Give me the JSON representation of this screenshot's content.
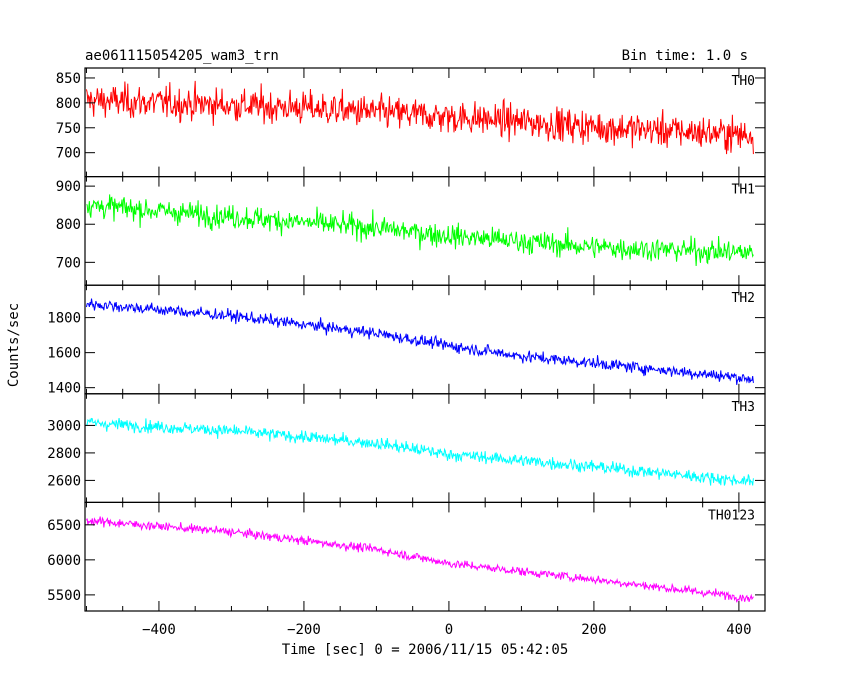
{
  "header": {
    "title": "ae061115054205_wam3_trn",
    "bin_time": "Bin time: 1.0 s"
  },
  "chart_data": {
    "type": "line",
    "xlabel": "Time [sec] 0 = 2006/11/15 05:42:05",
    "ylabel": "Counts/sec",
    "xlim": [
      -502,
      436
    ],
    "xticks": [
      -400,
      -200,
      0,
      200,
      400
    ],
    "panels": [
      {
        "name": "TH0",
        "color": "#ff0000",
        "ylim": [
          652,
          870
        ],
        "yticks": [
          700,
          750,
          800,
          850
        ],
        "trend": {
          "x": [
            -500,
            -350,
            -200,
            0,
            200,
            420
          ],
          "y": [
            805,
            798,
            790,
            772,
            752,
            735
          ]
        },
        "noise_amplitude": 60
      },
      {
        "name": "TH1",
        "color": "#00ff00",
        "ylim": [
          640,
          925
        ],
        "yticks": [
          700,
          800,
          900
        ],
        "trend": {
          "x": [
            -500,
            -300,
            -100,
            0,
            200,
            420
          ],
          "y": [
            850,
            820,
            790,
            770,
            740,
            725
          ]
        },
        "noise_amplitude": 55
      },
      {
        "name": "TH2",
        "color": "#0000ff",
        "ylim": [
          1365,
          1985
        ],
        "yticks": [
          1400,
          1600,
          1800
        ],
        "trend": {
          "x": [
            -500,
            -300,
            -100,
            0,
            100,
            200,
            420
          ],
          "y": [
            1880,
            1810,
            1710,
            1640,
            1580,
            1540,
            1450
          ]
        },
        "noise_amplitude": 60
      },
      {
        "name": "TH3",
        "color": "#00ffff",
        "ylim": [
          2440,
          3230
        ],
        "yticks": [
          2600,
          2800,
          3000
        ],
        "trend": {
          "x": [
            -500,
            -300,
            -100,
            0,
            200,
            420
          ],
          "y": [
            3020,
            2960,
            2870,
            2790,
            2700,
            2590
          ]
        },
        "noise_amplitude": 80
      },
      {
        "name": "TH0123",
        "color": "#ff00ff",
        "ylim": [
          5270,
          6820
        ],
        "yticks": [
          5500,
          6000,
          6500
        ],
        "trend": {
          "x": [
            -500,
            -300,
            -100,
            0,
            200,
            420
          ],
          "y": [
            6560,
            6400,
            6150,
            5950,
            5720,
            5450
          ]
        },
        "noise_amplitude": 110
      }
    ]
  }
}
